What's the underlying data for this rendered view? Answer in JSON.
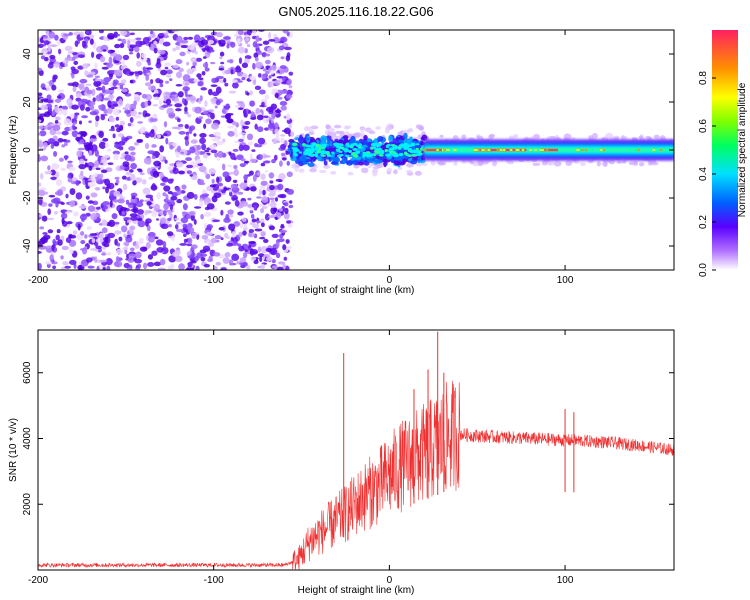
{
  "title": "GN05.2025.116.18.22.G06",
  "chart_data": [
    {
      "type": "heatmap",
      "name": "spectrogram",
      "xlabel": "Height of straight line (km)",
      "ylabel": "Frequency (Hz)",
      "xlim": [
        -200,
        162
      ],
      "ylim": [
        -50,
        50
      ],
      "xticks": [
        -200,
        -100,
        0,
        100
      ],
      "xtick_labels": [
        "-200",
        "-100",
        "0",
        "100"
      ],
      "yticks": [
        -40,
        -20,
        0,
        20,
        40
      ],
      "ytick_labels": [
        "-40",
        "-20",
        "0",
        "20",
        "40"
      ],
      "colorbar": {
        "label": "Normalized spectral amplitude",
        "range": [
          0,
          1
        ],
        "ticks": [
          0.0,
          0.2,
          0.4,
          0.6,
          0.8
        ],
        "tick_labels": [
          "0.0",
          "0.2",
          "0.4",
          "0.6",
          "0.8"
        ],
        "colors": [
          "#ffffff",
          "#b070ff",
          "#5a00ff",
          "#0060ff",
          "#00e0ff",
          "#00ff60",
          "#80ff00",
          "#ffff00",
          "#ff9000",
          "#ff2060"
        ]
      },
      "regions": [
        {
          "x": [
            -200,
            -56
          ],
          "frequency": [
            -50,
            50
          ],
          "amplitude": "noise 0.1-0.25"
        },
        {
          "x": [
            -56,
            20
          ],
          "frequency": [
            -8,
            8
          ],
          "center_frequency": 0,
          "amplitude": "peak 0.3-0.5"
        },
        {
          "x": [
            20,
            162
          ],
          "frequency": [
            -4,
            4
          ],
          "center_frequency": 0,
          "amplitude": "peak 0.5-1.0"
        }
      ],
      "grid": false
    },
    {
      "type": "line",
      "name": "snr",
      "xlabel": "Height of straight line (km)",
      "ylabel": "SNR (10 * v/v)",
      "xlim": [
        -200,
        162
      ],
      "ylim": [
        0,
        7300
      ],
      "xticks": [
        -200,
        -100,
        0,
        100
      ],
      "xtick_labels": [
        "-200",
        "-100",
        "0",
        "100"
      ],
      "yticks": [
        2000,
        4000,
        6000
      ],
      "ytick_labels": [
        "2000",
        "4000",
        "6000"
      ],
      "color": "#f03030",
      "profile": {
        "x": [
          -200,
          -60,
          -52,
          -45,
          -35,
          -25,
          -15,
          -5,
          5,
          15,
          25,
          32,
          38,
          45,
          60,
          80,
          100,
          120,
          140,
          162
        ],
        "y": [
          150,
          150,
          300,
          900,
          1300,
          1700,
          2200,
          2600,
          3100,
          3400,
          3700,
          4000,
          4150,
          4100,
          4050,
          4000,
          3950,
          3900,
          3800,
          3650
        ]
      },
      "spikes": [
        {
          "x": -26,
          "y": 6600
        },
        {
          "x": 14,
          "y": 5500
        },
        {
          "x": 22,
          "y": 6100
        },
        {
          "x": 27.5,
          "y": 7250
        },
        {
          "x": 31,
          "y": 6000
        },
        {
          "x": 100,
          "y": 4900
        },
        {
          "x": 105,
          "y": 4800
        }
      ],
      "grid": false
    }
  ]
}
